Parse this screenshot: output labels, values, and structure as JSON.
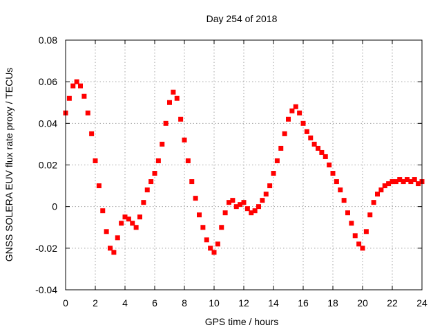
{
  "chart_data": {
    "type": "scatter",
    "title": "Day 254 of 2018",
    "xlabel": "GPS time / hours",
    "ylabel": "GNSS SOLERA EUV flux rate proxy / TECUs",
    "xlim": [
      0,
      24
    ],
    "ylim": [
      -0.04,
      0.08
    ],
    "xticks": [
      "0",
      "2",
      "4",
      "6",
      "8",
      "10",
      "12",
      "14",
      "16",
      "18",
      "20",
      "22",
      "24"
    ],
    "yticks": [
      "0.08",
      "0.06",
      "0.04",
      "0.02",
      "0",
      "-0.02",
      "-0.04"
    ],
    "grid": true,
    "marker": "square",
    "color": "#ff0000",
    "series": [
      {
        "x": [
          0.0,
          0.25,
          0.5,
          0.75,
          1.0,
          1.25,
          1.5,
          1.75,
          2.0,
          2.25,
          2.5,
          2.75,
          3.0,
          3.25,
          3.5,
          3.75,
          4.0,
          4.25,
          4.5,
          4.75,
          5.0,
          5.25,
          5.5,
          5.75,
          6.0,
          6.25,
          6.5,
          6.75,
          7.0,
          7.25,
          7.5,
          7.75,
          8.0,
          8.25,
          8.5,
          8.75,
          9.0,
          9.25,
          9.5,
          9.75,
          10.0,
          10.25,
          10.5,
          10.75,
          11.0,
          11.25,
          11.5,
          11.75,
          12.0,
          12.25,
          12.5,
          12.75,
          13.0,
          13.25,
          13.5,
          13.75,
          14.0,
          14.25,
          14.5,
          14.75,
          15.0,
          15.25,
          15.5,
          15.75,
          16.0,
          16.25,
          16.5,
          16.75,
          17.0,
          17.25,
          17.5,
          17.75,
          18.0,
          18.25,
          18.5,
          18.75,
          19.0,
          19.25,
          19.5,
          19.75,
          20.0,
          20.25,
          20.5,
          20.75,
          21.0,
          21.25,
          21.5,
          21.75,
          22.0,
          22.25,
          22.5,
          22.75,
          23.0,
          23.25,
          23.5,
          23.75,
          24.0
        ],
        "y": [
          0.045,
          0.052,
          0.058,
          0.06,
          0.058,
          0.053,
          0.045,
          0.035,
          0.022,
          0.01,
          -0.002,
          -0.012,
          -0.02,
          -0.022,
          -0.015,
          -0.008,
          -0.005,
          -0.006,
          -0.008,
          -0.01,
          -0.005,
          0.002,
          0.008,
          0.012,
          0.016,
          0.022,
          0.03,
          0.04,
          0.05,
          0.055,
          0.052,
          0.042,
          0.032,
          0.022,
          0.012,
          0.004,
          -0.004,
          -0.01,
          -0.016,
          -0.02,
          -0.022,
          -0.018,
          -0.01,
          -0.003,
          0.002,
          0.003,
          0.0,
          0.001,
          0.002,
          -0.001,
          -0.003,
          -0.002,
          0.0,
          0.003,
          0.006,
          0.01,
          0.016,
          0.022,
          0.028,
          0.035,
          0.042,
          0.046,
          0.048,
          0.045,
          0.04,
          0.036,
          0.033,
          0.03,
          0.028,
          0.026,
          0.024,
          0.02,
          0.016,
          0.012,
          0.008,
          0.003,
          -0.003,
          -0.008,
          -0.014,
          -0.018,
          -0.02,
          -0.012,
          -0.004,
          0.002,
          0.006,
          0.008,
          0.01,
          0.011,
          0.012,
          0.012,
          0.013,
          0.012,
          0.013,
          0.012,
          0.013,
          0.011,
          0.012
        ]
      }
    ]
  }
}
